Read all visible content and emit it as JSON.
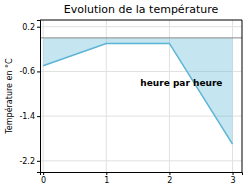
{
  "chart_data": {
    "type": "area",
    "title": "Evolution de la température",
    "ylabel": "Température en °C",
    "annotation": "heure par heure",
    "x": [
      0,
      1,
      2,
      3
    ],
    "values": [
      -0.5,
      -0.1,
      -0.1,
      -1.9
    ],
    "baseline": 0.0,
    "color": "#5ab4d6",
    "xlim": [
      -0.05,
      3.15
    ],
    "ylim": [
      -2.4,
      0.32
    ],
    "xticks": [
      0,
      1,
      2,
      3
    ],
    "yticks": [
      0.2,
      -0.6,
      -1.4,
      -2.2
    ],
    "grid": true
  }
}
